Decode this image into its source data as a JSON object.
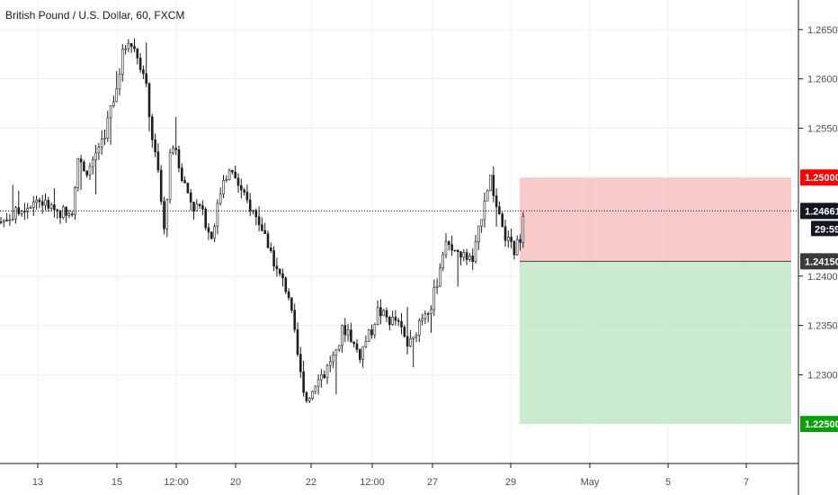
{
  "title": "British Pound / U.S. Dollar, 60, FXCM",
  "chart_data": {
    "type": "candlestick",
    "symbol": "GBPUSD",
    "interval": "60",
    "source": "FXCM",
    "ylim": [
      1.221,
      1.268
    ],
    "y_ticks": [
      {
        "value": 1.265,
        "label": "1.26500"
      },
      {
        "value": 1.26,
        "label": "1.26000"
      },
      {
        "value": 1.255,
        "label": "1.25500"
      },
      {
        "value": 1.24,
        "label": "1.24000"
      },
      {
        "value": 1.235,
        "label": "1.23500"
      },
      {
        "value": 1.23,
        "label": "1.23000"
      }
    ],
    "x_ticks": [
      "13",
      "15",
      "12:00",
      "20",
      "22",
      "12:00",
      "27",
      "29",
      "May",
      "5",
      "7"
    ],
    "grid": true,
    "current_price": {
      "value": 1.24661,
      "label": "1.24661",
      "countdown": "29:59"
    },
    "position": {
      "type": "long",
      "entry": {
        "value": 1.2415,
        "label": "1.24150"
      },
      "stop_loss": {
        "value": 1.25,
        "label": "1.25000"
      },
      "take_profit": {
        "value": 1.225,
        "label": "1.22500"
      }
    },
    "series": [
      {
        "close_path": [
          [
            0,
            1.2455
          ],
          [
            4,
            1.2462
          ],
          [
            8,
            1.247
          ],
          [
            12,
            1.2478
          ],
          [
            16,
            1.2471
          ],
          [
            20,
            1.2465
          ],
          [
            24,
            1.2468
          ],
          [
            26,
            1.252
          ],
          [
            28,
            1.2505
          ],
          [
            30,
            1.251
          ],
          [
            32,
            1.2525
          ],
          [
            35,
            1.2545
          ],
          [
            37,
            1.257
          ],
          [
            39,
            1.2592
          ],
          [
            41,
            1.2625
          ],
          [
            43,
            1.264
          ],
          [
            45,
            1.263
          ],
          [
            47,
            1.2615
          ],
          [
            49,
            1.259
          ],
          [
            51,
            1.254
          ],
          [
            53,
            1.2505
          ],
          [
            55,
            1.2445
          ],
          [
            57,
            1.252
          ],
          [
            59,
            1.253
          ],
          [
            61,
            1.25
          ],
          [
            63,
            1.2485
          ],
          [
            65,
            1.247
          ],
          [
            67,
            1.247
          ],
          [
            69,
            1.2455
          ],
          [
            71,
            1.244
          ],
          [
            73,
            1.247
          ],
          [
            75,
            1.25
          ],
          [
            77,
            1.2505
          ],
          [
            79,
            1.25
          ],
          [
            81,
            1.2485
          ],
          [
            83,
            1.2475
          ],
          [
            85,
            1.2465
          ],
          [
            87,
            1.2455
          ],
          [
            89,
            1.244
          ],
          [
            91,
            1.2425
          ],
          [
            93,
            1.2405
          ],
          [
            95,
            1.2395
          ],
          [
            97,
            1.238
          ],
          [
            99,
            1.234
          ],
          [
            101,
            1.23
          ],
          [
            103,
            1.2275
          ],
          [
            105,
            1.2285
          ],
          [
            107,
            1.23
          ],
          [
            109,
            1.23
          ],
          [
            111,
            1.2315
          ],
          [
            113,
            1.232
          ],
          [
            115,
            1.2345
          ],
          [
            117,
            1.2345
          ],
          [
            119,
            1.233
          ],
          [
            121,
            1.232
          ],
          [
            123,
            1.2335
          ],
          [
            125,
            1.2345
          ],
          [
            127,
            1.2365
          ],
          [
            129,
            1.236
          ],
          [
            131,
            1.2355
          ],
          [
            133,
            1.2355
          ],
          [
            135,
            1.2345
          ],
          [
            137,
            1.233
          ],
          [
            139,
            1.2335
          ],
          [
            141,
            1.2355
          ],
          [
            143,
            1.2365
          ],
          [
            145,
            1.237
          ],
          [
            147,
            1.2395
          ],
          [
            149,
            1.2425
          ],
          [
            151,
            1.2435
          ],
          [
            153,
            1.2425
          ],
          [
            155,
            1.242
          ],
          [
            157,
            1.242
          ],
          [
            159,
            1.2415
          ],
          [
            161,
            1.2445
          ],
          [
            163,
            1.248
          ],
          [
            165,
            1.25
          ],
          [
            167,
            1.247
          ],
          [
            169,
            1.2445
          ],
          [
            171,
            1.2435
          ],
          [
            173,
            1.2425
          ],
          [
            175,
            1.244
          ],
          [
            176,
            1.2466
          ]
        ]
      }
    ]
  }
}
